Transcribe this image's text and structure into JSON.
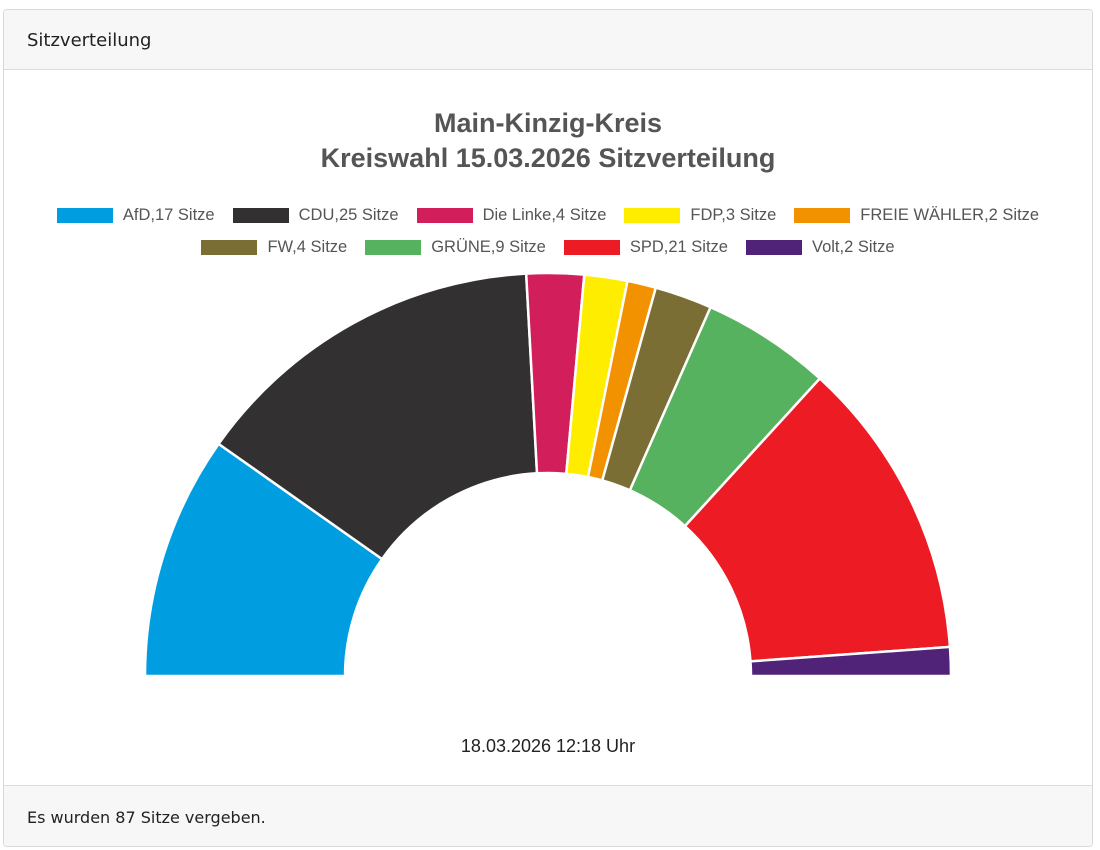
{
  "card": {
    "header": "Sitzverteilung",
    "footer": "Es wurden 87 Sitze vergeben."
  },
  "chart_data": {
    "type": "pie",
    "variant": "semicircle-donut",
    "title_line1": "Main-Kinzig-Kreis",
    "title_line2": "Kreiswahl 15.03.2026 Sitzverteilung",
    "legend_position": "top",
    "timestamp": "18.03.2026 12:18 Uhr",
    "series": [
      {
        "name": "AfD",
        "value": 17,
        "label": "AfD,17 Sitze",
        "color": "#009ee0"
      },
      {
        "name": "CDU",
        "value": 25,
        "label": "CDU,25 Sitze",
        "color": "#323031"
      },
      {
        "name": "Die Linke",
        "value": 4,
        "label": "Die Linke,4 Sitze",
        "color": "#d21f5c"
      },
      {
        "name": "FDP",
        "value": 3,
        "label": "FDP,3 Sitze",
        "color": "#ffed00"
      },
      {
        "name": "FREIE WÄHLER",
        "value": 2,
        "label": "FREIE WÄHLER,2 Sitze",
        "color": "#f39200"
      },
      {
        "name": "FW",
        "value": 4,
        "label": "FW,4 Sitze",
        "color": "#7a6e35"
      },
      {
        "name": "GRÜNE",
        "value": 9,
        "label": "GRÜNE,9 Sitze",
        "color": "#56b25e"
      },
      {
        "name": "SPD",
        "value": 21,
        "label": "SPD,21 Sitze",
        "color": "#ed1c24"
      },
      {
        "name": "Volt",
        "value": 2,
        "label": "Volt,2 Sitze",
        "color": "#502379"
      }
    ]
  }
}
